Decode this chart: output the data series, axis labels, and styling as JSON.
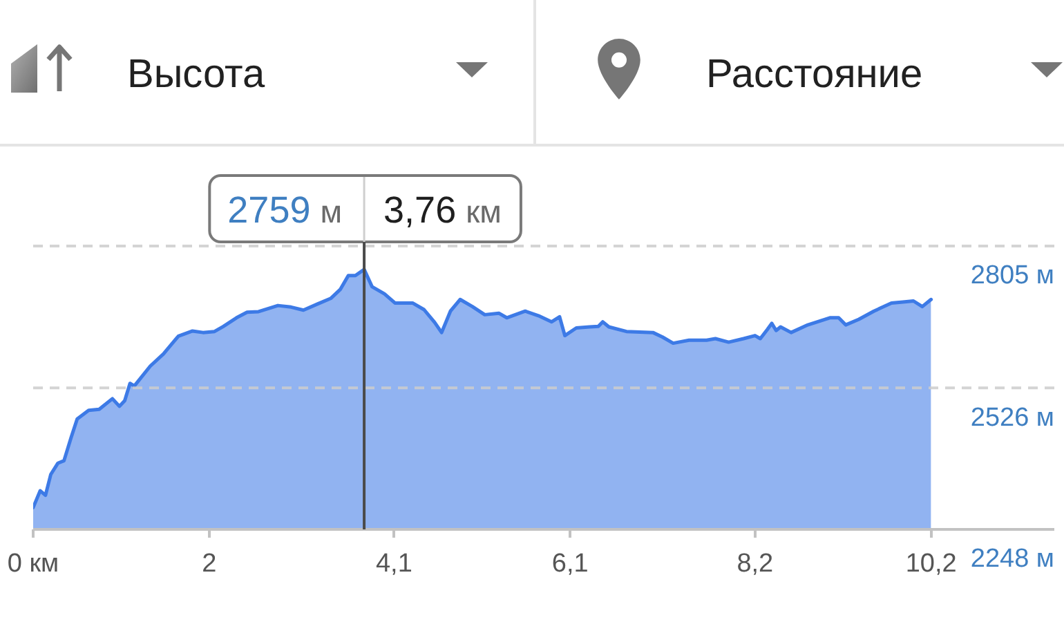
{
  "chart_data": {
    "type": "area",
    "ylabel": "Высота",
    "xlabel": "Расстояние",
    "x": [
      0,
      0.08,
      0.14,
      0.2,
      0.28,
      0.35,
      0.43,
      0.5,
      0.63,
      0.75,
      0.9,
      0.98,
      1.04,
      1.1,
      1.15,
      1.33,
      1.48,
      1.65,
      1.81,
      1.93,
      2.06,
      2.16,
      2.31,
      2.43,
      2.56,
      2.78,
      2.93,
      3.07,
      3.23,
      3.38,
      3.49,
      3.58,
      3.66,
      3.76,
      3.85,
      3.99,
      4.11,
      4.31,
      4.44,
      4.56,
      4.64,
      4.74,
      4.85,
      4.99,
      5.13,
      5.29,
      5.38,
      5.59,
      5.74,
      5.89,
      5.98,
      6.04,
      6.17,
      6.32,
      6.42,
      6.47,
      6.54,
      6.74,
      7.04,
      7.15,
      7.27,
      7.45,
      7.65,
      7.75,
      7.9,
      8.07,
      8.2,
      8.26,
      8.34,
      8.39,
      8.44,
      8.49,
      8.61,
      8.8,
      9.05,
      9.15,
      9.23,
      9.38,
      9.55,
      9.75,
      9.88,
      10.0,
      10.1,
      10.2
    ],
    "values": [
      2291,
      2324,
      2315,
      2356,
      2378,
      2383,
      2428,
      2465,
      2482,
      2484,
      2505,
      2490,
      2501,
      2535,
      2530,
      2569,
      2593,
      2628,
      2638,
      2635,
      2637,
      2647,
      2664,
      2675,
      2676,
      2688,
      2685,
      2679,
      2691,
      2702,
      2720,
      2747,
      2747,
      2759,
      2725,
      2711,
      2693,
      2693,
      2680,
      2655,
      2635,
      2677,
      2700,
      2686,
      2670,
      2673,
      2664,
      2677,
      2668,
      2656,
      2666,
      2629,
      2644,
      2646,
      2647,
      2656,
      2646,
      2637,
      2635,
      2626,
      2614,
      2620,
      2620,
      2623,
      2616,
      2623,
      2629,
      2623,
      2641,
      2653,
      2639,
      2646,
      2635,
      2650,
      2664,
      2664,
      2650,
      2661,
      2677,
      2693,
      2695,
      2697,
      2686,
      2700
    ],
    "color": "#3d7ae6",
    "xlim": [
      0,
      11.6
    ],
    "xticks": [
      {
        "value": 0,
        "label": "0 км"
      },
      2,
      {
        "value": 4.1,
        "label": "4,1"
      },
      {
        "value": 6.1,
        "label": "6,1"
      },
      {
        "value": 8.2,
        "label": "8,2"
      },
      {
        "value": 10.2,
        "label": "10,2"
      }
    ],
    "ylim": [
      2248,
      2805
    ],
    "yticks": [
      {
        "value": 2248,
        "label": "2248 м"
      },
      {
        "value": 2526,
        "label": "2526 м"
      },
      {
        "value": 2805,
        "label": "2805 м"
      }
    ],
    "grid": "y",
    "ref_lines": [
      {
        "axis": "x",
        "value": 3.76,
        "color": "#4a4a4a"
      }
    ],
    "annotations": [
      "2759 м",
      "3,76 км"
    ]
  }
}
